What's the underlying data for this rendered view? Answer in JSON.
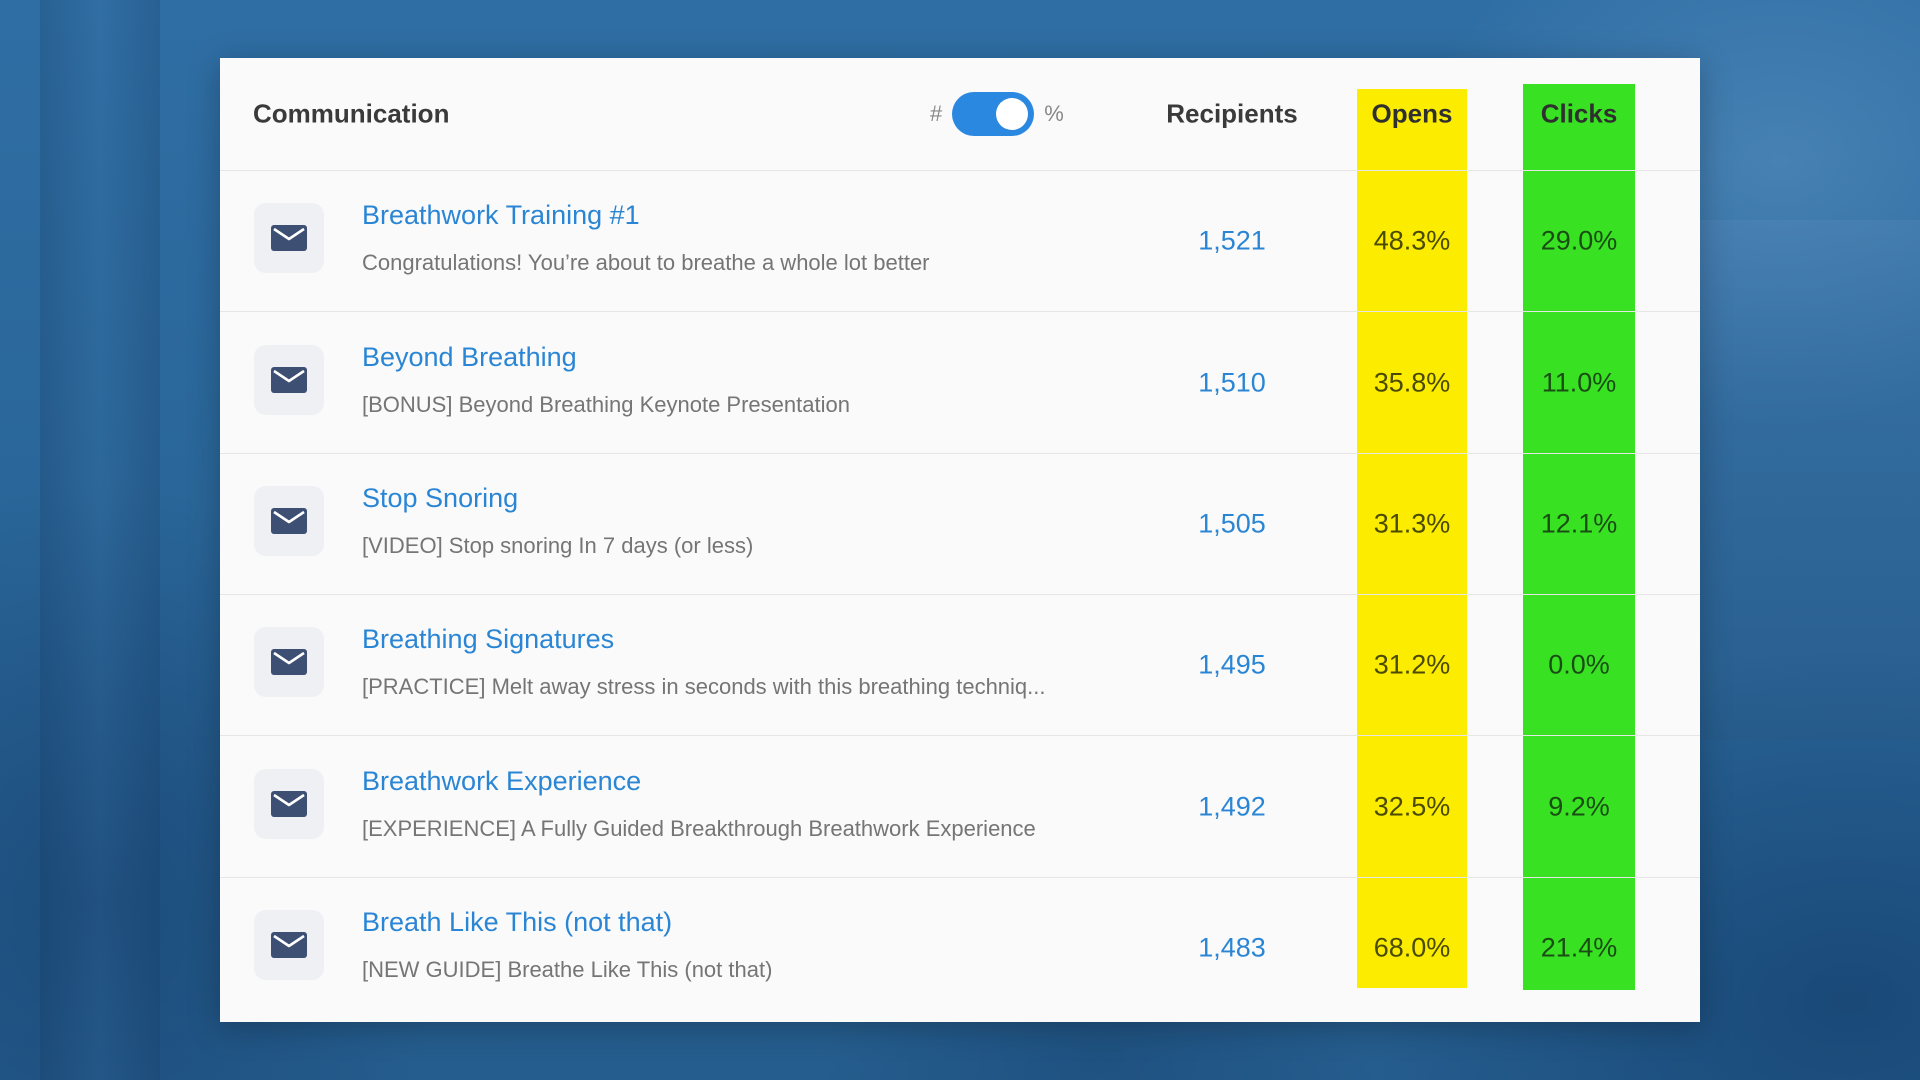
{
  "header": {
    "communication": "Communication",
    "toggle_left": "#",
    "toggle_right": "%",
    "toggle_on": true,
    "recipients": "Recipients",
    "opens": "Opens",
    "clicks": "Clicks"
  },
  "colors": {
    "opens_highlight": "#fbec00",
    "clicks_highlight": "#38e223",
    "link": "#2a86d4",
    "toggle": "#2b88e0"
  },
  "rows": [
    {
      "icon": "mail-icon",
      "subject": "Breathwork Training #1",
      "preview": "Congratulations! You’re about to breathe a whole lot better",
      "recipients": "1,521",
      "opens": "48.3%",
      "clicks": "29.0%"
    },
    {
      "icon": "mail-icon",
      "subject": "Beyond Breathing",
      "preview": "[BONUS] Beyond Breathing Keynote Presentation",
      "recipients": "1,510",
      "opens": "35.8%",
      "clicks": "11.0%"
    },
    {
      "icon": "mail-icon",
      "subject": "Stop Snoring",
      "preview": "[VIDEO] Stop snoring In 7 days (or less)",
      "recipients": "1,505",
      "opens": "31.3%",
      "clicks": "12.1%"
    },
    {
      "icon": "mail-icon",
      "subject": "Breathing Signatures",
      "preview": "[PRACTICE] Melt away stress in seconds with this breathing techniq...",
      "recipients": "1,495",
      "opens": "31.2%",
      "clicks": "0.0%"
    },
    {
      "icon": "mail-icon",
      "subject": "Breathwork Experience",
      "preview": "[EXPERIENCE] A Fully Guided Breakthrough Breathwork Experience",
      "recipients": "1,492",
      "opens": "32.5%",
      "clicks": "9.2%"
    },
    {
      "icon": "mail-icon",
      "subject": "Breath Like This (not that)",
      "preview": "[NEW GUIDE] Breathe Like This (not that)",
      "recipients": "1,483",
      "opens": "68.0%",
      "clicks": "21.4%"
    }
  ]
}
